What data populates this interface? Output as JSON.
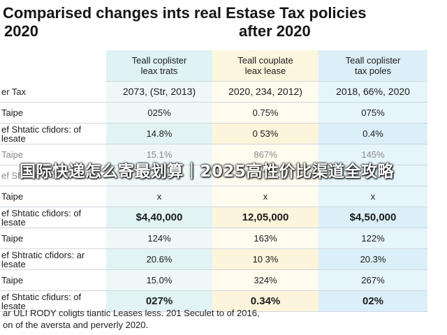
{
  "title_line1": "Comparised changes ints real Estase Tax policies",
  "title_line2_left": "2020",
  "title_line2_right": "after 2020",
  "chart_data": {
    "type": "table",
    "columns": [
      {
        "header_line1": "Teall coplister",
        "header_line2": "leax trats"
      },
      {
        "header_line1": "Teall couplate",
        "header_line2": "leax lease"
      },
      {
        "header_line1": "Teall coplister",
        "header_line2": "tax poles"
      }
    ],
    "rows": [
      {
        "label": "er Tax",
        "values": [
          "2073, (Str, 2013)",
          "2020, 234, 2012)",
          "2018, 66%, 2020"
        ]
      },
      {
        "label": "Taipe",
        "values": [
          "025%",
          "0.75%",
          "075%"
        ]
      },
      {
        "label": "ef Shtatic cfidors: of lesate",
        "values": [
          "14.8%",
          "0 53%",
          "0.4%"
        ]
      },
      {
        "label": "Taipe",
        "values": [
          "15.1%",
          "867%",
          "145%"
        ]
      },
      {
        "label": "ef Shtatic cfidors:",
        "values": [
          "",
          "",
          ""
        ]
      },
      {
        "label": "Taipe",
        "values": [
          "x",
          "x",
          "x"
        ]
      },
      {
        "label": "ef Shtatic cfidors: of lesate",
        "values": [
          "$4,40,000",
          "12,05,000",
          "$4,50,000"
        ]
      },
      {
        "label": "Taipe",
        "values": [
          "124%",
          "163%",
          "122%"
        ]
      },
      {
        "label": "ef Shtratic cfidors: ar lesate",
        "values": [
          "20.6%",
          "10 3%",
          "20.3%"
        ]
      },
      {
        "label": "Taipe",
        "values": [
          "15.0%",
          "324%",
          "267%"
        ]
      },
      {
        "label": "ef Shtatic cfidurs: of lesate",
        "values": [
          "027%",
          "0.34%",
          "02%"
        ]
      }
    ]
  },
  "watermark": "国际快递怎么寄最划算｜2025高性价比渠道全攻略",
  "footnote_line1": "ar ULI RODY coligts tiantic Leases less. 201 Seculet to of 2016,",
  "footnote_line2": "on of the aversta and perverly 2020."
}
